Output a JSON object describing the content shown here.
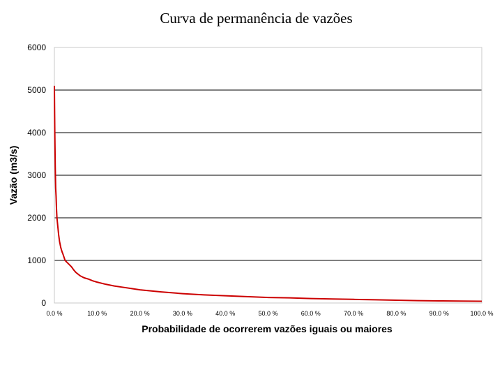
{
  "chart_data": {
    "type": "line",
    "title": "Curva de permanência de vazões",
    "xlabel": "Probabilidade de ocorrerem vazões iguais ou maiores",
    "ylabel": "Vazão (m3/s)",
    "xlim": [
      0,
      100
    ],
    "ylim": [
      0,
      6000
    ],
    "yticks": [
      "0",
      "1000",
      "2000",
      "3000",
      "4000",
      "5000",
      "6000"
    ],
    "xticks": [
      "0.0 %",
      "10.0 %",
      "20.0 %",
      "30.0 %",
      "40.0 %",
      "50.0 %",
      "60.0 %",
      "70.0 %",
      "80.0 %",
      "90.0 %",
      "100.0 %"
    ],
    "grid": "horizontal",
    "series": [
      {
        "color": "#cc0000",
        "x": [
          0,
          0.05,
          0.1,
          0.2,
          0.3,
          0.4,
          0.5,
          0.6,
          0.8,
          1.0,
          1.2,
          1.5,
          1.8,
          2.0,
          2.5,
          3.0,
          3.5,
          4.0,
          4.5,
          5.0,
          6.0,
          7.0,
          8.0,
          9.0,
          10,
          12,
          14,
          16,
          18,
          20,
          25,
          30,
          35,
          40,
          45,
          50,
          55,
          60,
          65,
          70,
          75,
          80,
          85,
          90,
          95,
          100
        ],
        "values": [
          5100,
          4500,
          4000,
          3200,
          2700,
          2500,
          2200,
          2000,
          1800,
          1600,
          1450,
          1300,
          1200,
          1150,
          1000,
          950,
          900,
          850,
          780,
          720,
          640,
          590,
          560,
          520,
          490,
          440,
          400,
          370,
          340,
          310,
          260,
          220,
          190,
          170,
          150,
          130,
          120,
          105,
          95,
          85,
          75,
          65,
          55,
          50,
          45,
          40
        ]
      }
    ]
  }
}
